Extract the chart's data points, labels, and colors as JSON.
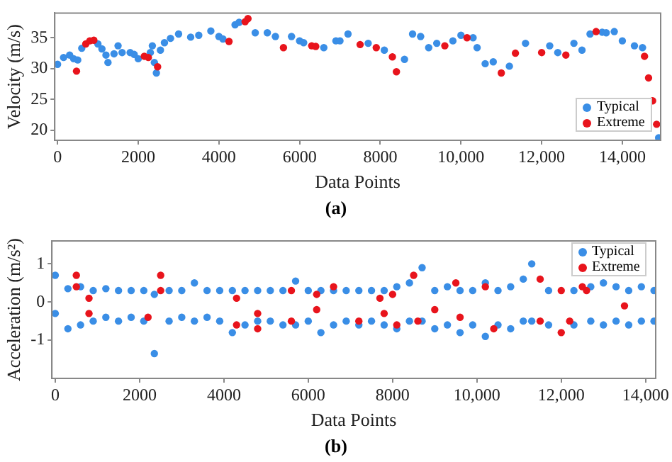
{
  "chart_data": [
    {
      "type": "scatter",
      "xlabel": "Data Points",
      "ylabel": "Velocity (m/s)",
      "annotations": [
        "(a)"
      ],
      "marker": "circle",
      "legend": "bottom right",
      "xlim": [
        -70,
        14950
      ],
      "xticks": [
        0,
        2000,
        4000,
        6000,
        8000,
        {
          "value": 10000,
          "label": "10,000"
        },
        {
          "value": 12000,
          "label": "12,000"
        },
        {
          "value": 14000,
          "label": "14,000"
        }
      ],
      "ylim": [
        18.4,
        39
      ],
      "yticks": [
        20,
        25,
        30,
        35
      ],
      "series": [
        {
          "name": "Typical",
          "color": "#3a8ee6",
          "x": [
            0,
            150,
            300,
            400,
            500,
            600,
            1000,
            1100,
            1200,
            1250,
            1400,
            1500,
            1600,
            1800,
            1900,
            2000,
            2300,
            2350,
            2400,
            2450,
            2550,
            2650,
            2800,
            3000,
            3300,
            3500,
            3800,
            4000,
            4100,
            4400,
            4500,
            4900,
            5200,
            5400,
            5800,
            6000,
            6100,
            6600,
            6900,
            7000,
            7200,
            7700,
            8100,
            8600,
            8800,
            9000,
            9200,
            9400,
            9800,
            10000,
            10300,
            10400,
            10600,
            10800,
            11200,
            11600,
            12200,
            12400,
            12800,
            13000,
            13200,
            13500,
            13600,
            13800,
            14000,
            14300,
            14500,
            14900
          ],
          "values": [
            30.7,
            31.8,
            32.2,
            31.6,
            31.4,
            33.3,
            34,
            33.2,
            32.2,
            31,
            32.4,
            33.7,
            32.6,
            32.6,
            32.3,
            31.6,
            32.6,
            33.7,
            31,
            29.3,
            33,
            34.2,
            34.9,
            35.6,
            35.1,
            35.4,
            36.1,
            35.2,
            34.8,
            37.1,
            37.5,
            35.8,
            35.8,
            35.2,
            35.2,
            34.5,
            34.2,
            33.4,
            34.5,
            34.5,
            35.6,
            34.1,
            33,
            31.5,
            35.6,
            35.2,
            33.4,
            34.1,
            34.5,
            35.4,
            35,
            33.4,
            30.8,
            31.1,
            30.4,
            34.1,
            33.7,
            32.6,
            34.1,
            33,
            35.6,
            35.9,
            35.8,
            36,
            34.5,
            33.7,
            33.4,
            18.8
          ]
        },
        {
          "name": "Extreme",
          "color": "#e8141c",
          "x": [
            470,
            700,
            800,
            900,
            2150,
            2250,
            2480,
            4250,
            4650,
            4720,
            5600,
            6300,
            6400,
            7500,
            7900,
            8300,
            8400,
            9600,
            10150,
            11000,
            11350,
            12000,
            12600,
            13350,
            14550,
            14650,
            14750,
            14850
          ],
          "values": [
            29.6,
            34,
            34.5,
            34.6,
            32,
            31.8,
            30.3,
            34.4,
            37.6,
            38.1,
            33.4,
            33.7,
            33.6,
            33.9,
            33.4,
            31.9,
            29.5,
            33.7,
            35,
            29.3,
            32.5,
            32.6,
            32.2,
            36,
            32,
            28.5,
            24.8,
            21
          ]
        }
      ]
    },
    {
      "type": "scatter",
      "xlabel": "Data Points",
      "ylabel": "Acceleration (m/s²)",
      "annotations": [
        "(b)"
      ],
      "marker": "circle",
      "legend": "top right",
      "xlim": [
        -80,
        14240
      ],
      "xticks": [
        0,
        2000,
        4000,
        6000,
        8000,
        {
          "value": 10000,
          "label": "10,000"
        },
        {
          "value": 12000,
          "label": "12,000"
        },
        {
          "value": 14000,
          "label": "14,000"
        }
      ],
      "ylim": [
        -2,
        1.6
      ],
      "yticks": [
        -1,
        0,
        1
      ],
      "series": [
        {
          "name": "Typical",
          "color": "#3a8ee6",
          "x": [
            0,
            0,
            300,
            300,
            600,
            600,
            900,
            900,
            1200,
            1200,
            1500,
            1500,
            1800,
            1800,
            2100,
            2100,
            2350,
            2350,
            2700,
            2700,
            3000,
            3000,
            3300,
            3300,
            3600,
            3600,
            3900,
            3900,
            4200,
            4200,
            4500,
            4500,
            4800,
            4800,
            5100,
            5100,
            5400,
            5400,
            5700,
            5700,
            6000,
            6000,
            6300,
            6300,
            6600,
            6600,
            6900,
            6900,
            7200,
            7200,
            7500,
            7500,
            7800,
            7800,
            8100,
            8100,
            8400,
            8400,
            8700,
            8700,
            9000,
            9000,
            9300,
            9300,
            9600,
            9600,
            9900,
            9900,
            10200,
            10200,
            10500,
            10500,
            10800,
            10800,
            11100,
            11100,
            11300,
            11300,
            11700,
            11700,
            12300,
            12300,
            12700,
            12700,
            13000,
            13000,
            13300,
            13300,
            13600,
            13600,
            13900,
            13900,
            14200,
            14200
          ],
          "values": [
            0.7,
            -0.3,
            0.35,
            -0.7,
            0.4,
            -0.6,
            0.3,
            -0.5,
            0.35,
            -0.4,
            0.3,
            -0.5,
            0.3,
            -0.4,
            0.3,
            -0.5,
            0.2,
            -1.35,
            0.3,
            -0.5,
            0.3,
            -0.4,
            0.5,
            -0.5,
            0.3,
            -0.4,
            0.3,
            -0.5,
            0.3,
            -0.8,
            0.3,
            -0.6,
            0.3,
            -0.5,
            0.3,
            -0.5,
            0.3,
            -0.6,
            0.55,
            -0.6,
            0.3,
            -0.5,
            0.3,
            -0.8,
            0.3,
            -0.6,
            0.3,
            -0.5,
            0.3,
            -0.6,
            0.3,
            -0.5,
            0.3,
            -0.6,
            0.4,
            -0.7,
            0.5,
            -0.5,
            0.9,
            -0.5,
            0.3,
            -0.7,
            0.4,
            -0.6,
            0.3,
            -0.8,
            0.3,
            -0.6,
            0.5,
            -0.9,
            0.3,
            -0.6,
            0.4,
            -0.7,
            0.6,
            -0.5,
            1,
            -0.5,
            0.3,
            -0.6,
            0.3,
            -0.6,
            0.4,
            -0.5,
            0.5,
            -0.6,
            0.4,
            -0.5,
            0.3,
            -0.6,
            0.4,
            -0.5,
            0.3,
            -0.5
          ]
        },
        {
          "name": "Extreme",
          "color": "#e8141c",
          "x": [
            500,
            500,
            800,
            800,
            2200,
            2500,
            2500,
            4300,
            4300,
            4800,
            4800,
            5600,
            5600,
            6200,
            6200,
            6600,
            7200,
            7700,
            7800,
            8000,
            8100,
            8500,
            8600,
            9000,
            9500,
            9600,
            10200,
            10400,
            11500,
            11500,
            12000,
            12000,
            12200,
            12500,
            12600,
            13500
          ],
          "values": [
            0.7,
            0.4,
            0.1,
            -0.3,
            -0.4,
            0.7,
            0.3,
            0.1,
            -0.6,
            -0.3,
            -0.7,
            0.3,
            -0.5,
            0.2,
            -0.2,
            0.4,
            -0.5,
            0.1,
            -0.3,
            0.2,
            -0.6,
            0.7,
            -0.5,
            -0.2,
            0.5,
            -0.4,
            0.4,
            -0.7,
            0.6,
            -0.5,
            0.3,
            -0.8,
            -0.5,
            0.4,
            0.3,
            -0.1
          ]
        }
      ]
    }
  ]
}
